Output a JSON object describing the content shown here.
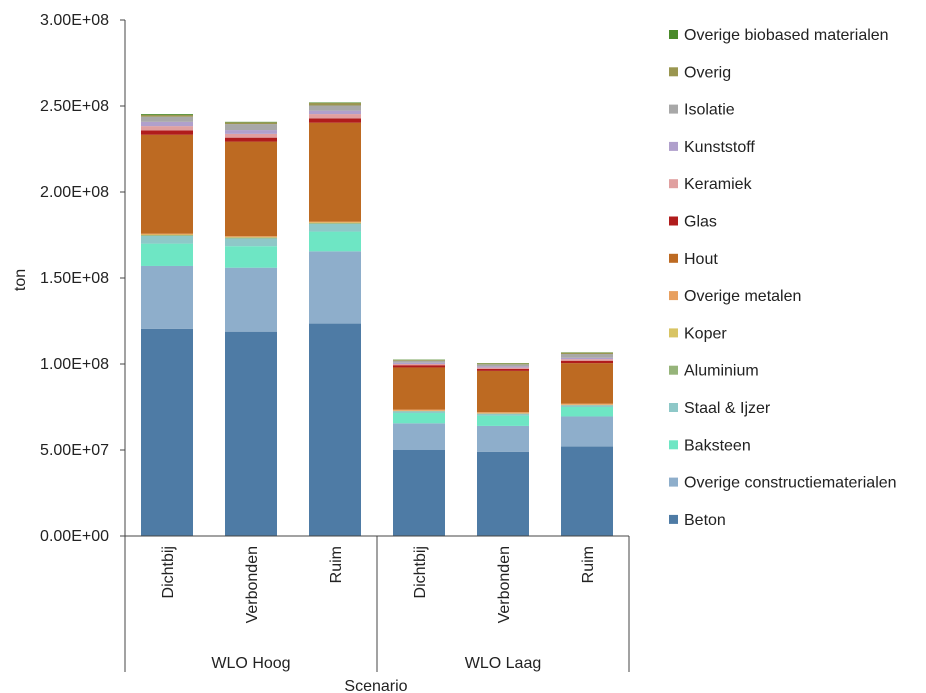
{
  "chart_data": {
    "type": "bar",
    "stacked": true,
    "xlabel": "Scenario",
    "ylabel": "ton",
    "ylim": [
      0,
      300000000
    ],
    "y_ticks": [
      "0.00E+00",
      "5.00E+07",
      "1.00E+08",
      "1.50E+08",
      "2.00E+08",
      "2.50E+08",
      "3.00E+08"
    ],
    "grid": false,
    "legend_position": "right",
    "groups": [
      {
        "label": "WLO Hoog",
        "categories": [
          "Dichtbij",
          "Verbonden",
          "Ruim"
        ]
      },
      {
        "label": "WLO Laag",
        "categories": [
          "Dichtbij",
          "Verbonden",
          "Ruim"
        ]
      }
    ],
    "categories": [
      "Dichtbij",
      "Verbonden",
      "Ruim",
      "Dichtbij",
      "Verbonden",
      "Ruim"
    ],
    "series": [
      {
        "name": "Beton",
        "color": "#4e7ba5",
        "values": [
          120500000,
          118800000,
          123500000,
          50000000,
          49000000,
          52000000
        ]
      },
      {
        "name": "Overige constructiematerialen",
        "color": "#8eaecb",
        "values": [
          36500000,
          37200000,
          42000000,
          15500000,
          15000000,
          17500000
        ]
      },
      {
        "name": "Baksteen",
        "color": "#6ee6c4",
        "values": [
          13000000,
          12500000,
          11500000,
          6000000,
          6000000,
          5500000
        ]
      },
      {
        "name": "Staal & Ijzer",
        "color": "#8ec8c8",
        "values": [
          4500000,
          4500000,
          4500000,
          1000000,
          1000000,
          1000000
        ]
      },
      {
        "name": "Aluminium",
        "color": "#96b47a",
        "values": [
          500000,
          500000,
          500000,
          200000,
          200000,
          200000
        ]
      },
      {
        "name": "Koper",
        "color": "#d8c464",
        "values": [
          300000,
          300000,
          300000,
          100000,
          100000,
          100000
        ]
      },
      {
        "name": "Overige metalen",
        "color": "#e8a060",
        "values": [
          500000,
          500000,
          500000,
          700000,
          700000,
          700000
        ]
      },
      {
        "name": "Hout",
        "color": "#bd6a22",
        "values": [
          57500000,
          55000000,
          57500000,
          24500000,
          24000000,
          23500000
        ]
      },
      {
        "name": "Glas",
        "color": "#b01c1c",
        "values": [
          2500000,
          2300000,
          2500000,
          1300000,
          1200000,
          1400000
        ]
      },
      {
        "name": "Keramiek",
        "color": "#e0a0a0",
        "values": [
          2500000,
          2200000,
          2500000,
          700000,
          700000,
          900000
        ]
      },
      {
        "name": "Kunststoff",
        "color": "#b0a0cc",
        "values": [
          2500000,
          2200000,
          2000000,
          700000,
          700000,
          800000
        ]
      },
      {
        "name": "Isolatie",
        "color": "#a8a8a8",
        "values": [
          3000000,
          3500000,
          3000000,
          1200000,
          1200000,
          2200000
        ]
      },
      {
        "name": "Overig",
        "color": "#9a9650",
        "values": [
          1000000,
          1000000,
          1500000,
          500000,
          500000,
          800000
        ]
      },
      {
        "name": "Overige biobased materialen",
        "color": "#4a8a2a",
        "values": [
          500000,
          300000,
          300000,
          200000,
          200000,
          200000
        ]
      }
    ]
  }
}
